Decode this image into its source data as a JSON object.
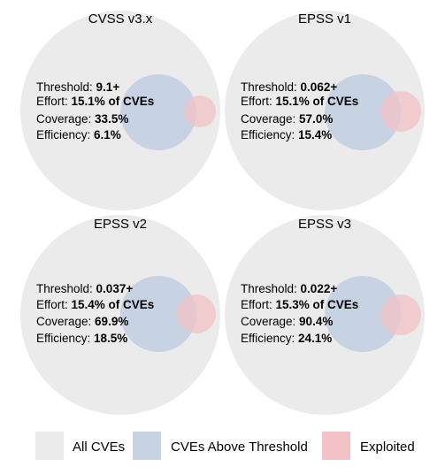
{
  "colors": {
    "all_cves": "#ebebeb",
    "above_threshold": "#c7d2e2",
    "exploited": "#f2c2c6",
    "overlap": "#dbc6d0"
  },
  "panels": [
    {
      "title": "CVSS v3.x",
      "threshold_label": "Threshold: ",
      "threshold": "9.1+",
      "effort_label": "Effort: ",
      "effort": "15.1% of CVEs",
      "coverage_label": "Coverage: ",
      "coverage": "33.5%",
      "efficiency_label": "Efficiency: ",
      "efficiency": "6.1%"
    },
    {
      "title": "EPSS v1",
      "threshold_label": "Threshold: ",
      "threshold": "0.062+",
      "effort_label": "Effort: ",
      "effort": "15.1% of CVEs",
      "coverage_label": "Coverage: ",
      "coverage": "57.0%",
      "efficiency_label": "Efficiency: ",
      "efficiency": "15.4%"
    },
    {
      "title": "EPSS v2",
      "threshold_label": "Threshold: ",
      "threshold": "0.037+",
      "effort_label": "Effort: ",
      "effort": "15.4% of CVEs",
      "coverage_label": "Coverage: ",
      "coverage": "69.9%",
      "efficiency_label": "Efficiency: ",
      "efficiency": "18.5%"
    },
    {
      "title": "EPSS v3",
      "threshold_label": "Threshold: ",
      "threshold": "0.022+",
      "effort_label": "Effort: ",
      "effort": "15.3% of CVEs",
      "coverage_label": "Coverage: ",
      "coverage": "90.4%",
      "efficiency_label": "Efficiency: ",
      "efficiency": "24.1%"
    }
  ],
  "legend": {
    "all_cves": "All CVEs",
    "above_threshold": "CVEs Above Threshold",
    "exploited": "Exploited"
  }
}
